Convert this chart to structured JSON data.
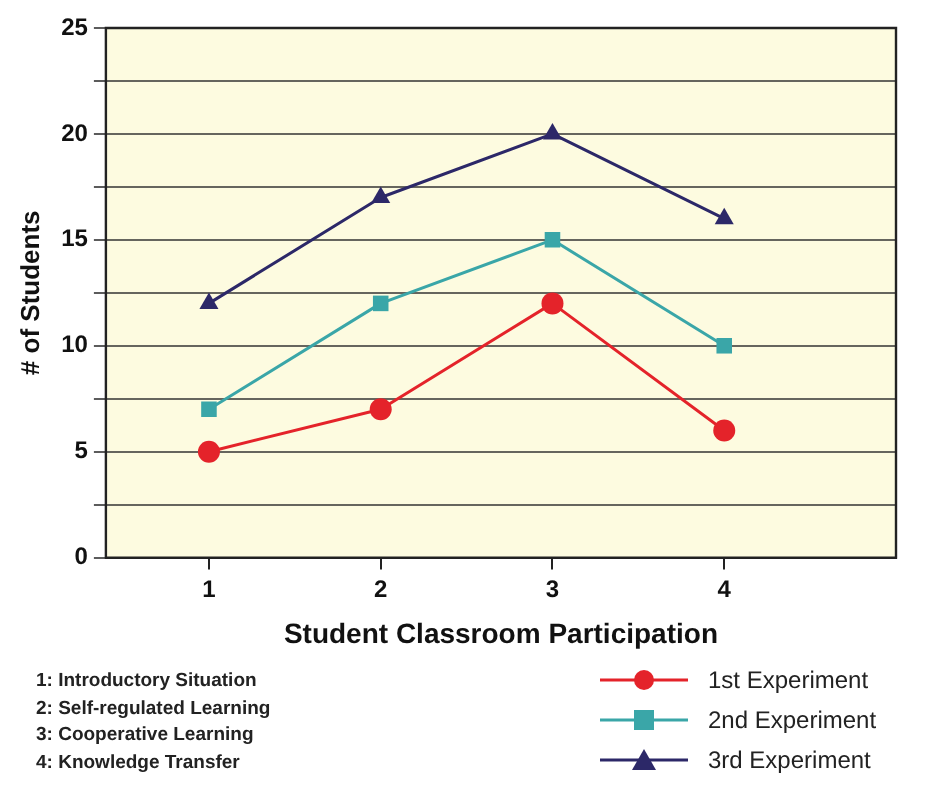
{
  "chart_data": {
    "type": "line",
    "xlabel": "Student Classroom Participation",
    "ylabel": "# of Students",
    "x": [
      1,
      2,
      3,
      4
    ],
    "series": [
      {
        "name": "1st Experiment",
        "color": "#e4232a",
        "marker": "circle",
        "values": [
          5,
          7,
          12,
          6
        ]
      },
      {
        "name": "2nd Experiment",
        "color": "#3aa6a8",
        "marker": "square",
        "values": [
          7,
          12,
          15,
          10
        ]
      },
      {
        "name": "3rd Experiment",
        "color": "#2c2868",
        "marker": "triangle",
        "values": [
          12,
          17,
          20,
          16
        ]
      }
    ],
    "xlim": [
      0.4,
      5
    ],
    "xticks": [
      1,
      2,
      3,
      4
    ],
    "ylim": [
      0,
      25
    ],
    "yticks": [
      0,
      {
        "value": 2.5,
        "label": null
      },
      5,
      {
        "value": 7.5,
        "label": null
      },
      10,
      {
        "value": 12.5,
        "label": null
      },
      15,
      {
        "value": 17.5,
        "label": null
      },
      20,
      {
        "value": 22.5,
        "label": null
      },
      25
    ],
    "grid": "y",
    "legend": "bottom right",
    "line_style": "solid",
    "annotations": [
      "1: Introductory Situation",
      "2: Self-regulated Learning",
      "3: Cooperative Learning",
      "4: Knowledge Transfer"
    ]
  }
}
